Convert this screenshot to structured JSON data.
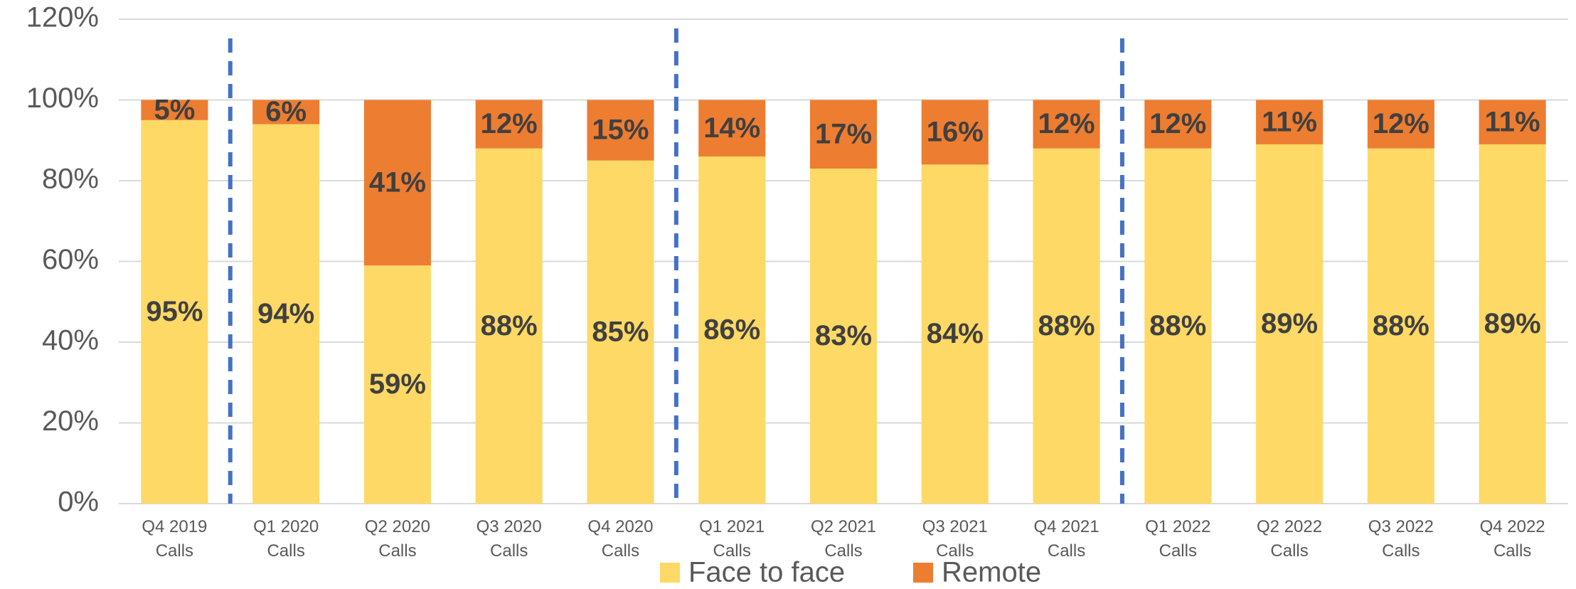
{
  "chart_data": {
    "type": "stacked_bar",
    "categories": [
      "Q4 2019 Calls",
      "Q1 2020 Calls",
      "Q2 2020 Calls",
      "Q3 2020 Calls",
      "Q4 2020 Calls",
      "Q1 2021 Calls",
      "Q2 2021 Calls",
      "Q3 2021 Calls",
      "Q4 2021 Calls",
      "Q1 2022 Calls",
      "Q2 2022 Calls",
      "Q3 2022 Calls",
      "Q4 2022 Calls"
    ],
    "series": [
      {
        "name": "Face to face",
        "color": "#FFD966",
        "values": [
          95,
          94,
          59,
          88,
          85,
          86,
          83,
          84,
          88,
          88,
          89,
          88,
          89
        ],
        "value_labels": [
          "95%",
          "94%",
          "59%",
          "88%",
          "85%",
          "86%",
          "83%",
          "84%",
          "88%",
          "88%",
          "89%",
          "88%",
          "89%"
        ]
      },
      {
        "name": "Remote",
        "color": "#ED7D31",
        "values": [
          5,
          6,
          41,
          12,
          15,
          14,
          17,
          16,
          12,
          12,
          11,
          12,
          11
        ],
        "value_labels": [
          "5%",
          "6%",
          "41%",
          "12%",
          "15%",
          "14%",
          "17%",
          "16%",
          "12%",
          "12%",
          "11%",
          "12%",
          "11%"
        ]
      }
    ],
    "ylim": [
      0,
      120
    ],
    "yticks": [
      {
        "value": 0,
        "label": "0%"
      },
      {
        "value": 20,
        "label": "20%"
      },
      {
        "value": 40,
        "label": "40%"
      },
      {
        "value": 60,
        "label": "60%"
      },
      {
        "value": 80,
        "label": "80%"
      },
      {
        "value": 100,
        "label": "100%"
      },
      {
        "value": 120,
        "label": "120%"
      }
    ],
    "grid": true,
    "legend": "bottom"
  }
}
